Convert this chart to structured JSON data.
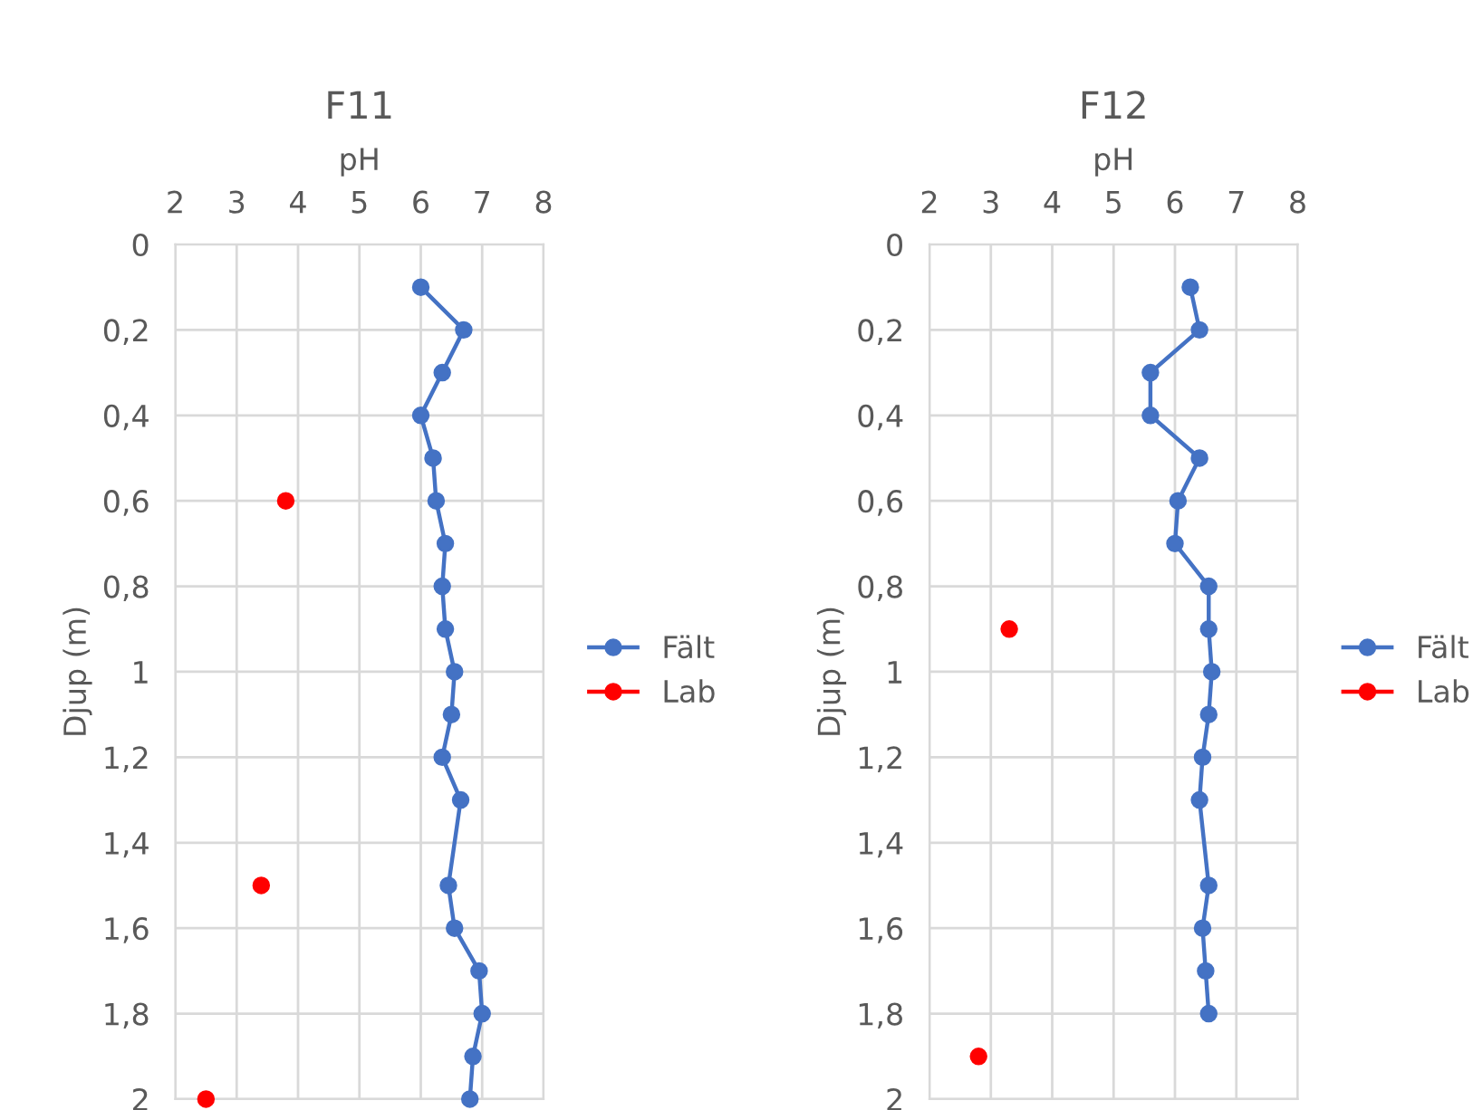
{
  "chart_data": [
    {
      "type": "line",
      "title": "F11",
      "xlabel": "pH",
      "ylabel": "Djup (m)",
      "xlim": [
        2,
        8
      ],
      "xticks": [
        2,
        3,
        4,
        5,
        6,
        7,
        8
      ],
      "ylim": [
        2,
        0
      ],
      "yticks": [
        0,
        {
          "value": 0.2,
          "label": "0,2"
        },
        {
          "value": 0.4,
          "label": "0,4"
        },
        {
          "value": 0.6,
          "label": "0,6"
        },
        {
          "value": 0.8,
          "label": "0,8"
        },
        1,
        {
          "value": 1.2,
          "label": "1,2"
        },
        {
          "value": 1.4,
          "label": "1,4"
        },
        {
          "value": 1.6,
          "label": "1,6"
        },
        {
          "value": 1.8,
          "label": "1,8"
        },
        2
      ],
      "grid": true,
      "legend": "right",
      "marker": "circle",
      "series": [
        {
          "name": "Fält",
          "color": "#4472c4",
          "x": [
            6.0,
            6.7,
            6.35,
            6.0,
            6.2,
            6.25,
            6.4,
            6.35,
            6.4,
            6.55,
            6.5,
            6.35,
            6.65,
            6.45,
            6.55,
            6.95,
            7.0,
            6.85,
            6.8
          ],
          "values": [
            0.1,
            0.2,
            0.3,
            0.4,
            0.5,
            0.6,
            0.7,
            0.8,
            0.9,
            1.0,
            1.1,
            1.2,
            1.3,
            1.5,
            1.6,
            1.7,
            1.8,
            1.9,
            2.0
          ]
        },
        {
          "name": "Lab",
          "color": "#ff0000",
          "type": "scatter",
          "x": [
            3.8,
            3.4,
            2.5
          ],
          "values": [
            0.6,
            1.5,
            2.0
          ]
        }
      ]
    },
    {
      "type": "line",
      "title": "F12",
      "xlabel": "pH",
      "ylabel": "Djup (m)",
      "xlim": [
        2,
        8
      ],
      "xticks": [
        2,
        3,
        4,
        5,
        6,
        7,
        8
      ],
      "ylim": [
        2,
        0
      ],
      "yticks": [
        0,
        {
          "value": 0.2,
          "label": "0,2"
        },
        {
          "value": 0.4,
          "label": "0,4"
        },
        {
          "value": 0.6,
          "label": "0,6"
        },
        {
          "value": 0.8,
          "label": "0,8"
        },
        1,
        {
          "value": 1.2,
          "label": "1,2"
        },
        {
          "value": 1.4,
          "label": "1,4"
        },
        {
          "value": 1.6,
          "label": "1,6"
        },
        {
          "value": 1.8,
          "label": "1,8"
        },
        2
      ],
      "grid": true,
      "legend": "right",
      "marker": "circle",
      "series": [
        {
          "name": "Fält",
          "color": "#4472c4",
          "x": [
            6.25,
            6.4,
            5.6,
            5.6,
            6.4,
            6.05,
            6.0,
            6.55,
            6.55,
            6.6,
            6.55,
            6.45,
            6.4,
            6.55,
            6.45,
            6.5,
            6.55
          ],
          "values": [
            0.1,
            0.2,
            0.3,
            0.4,
            0.5,
            0.6,
            0.7,
            0.8,
            0.9,
            1.0,
            1.1,
            1.2,
            1.3,
            1.5,
            1.6,
            1.7,
            1.8
          ]
        },
        {
          "name": "Lab",
          "color": "#ff0000",
          "type": "scatter",
          "x": [
            3.3,
            2.8
          ],
          "values": [
            0.9,
            1.9
          ]
        }
      ]
    }
  ]
}
